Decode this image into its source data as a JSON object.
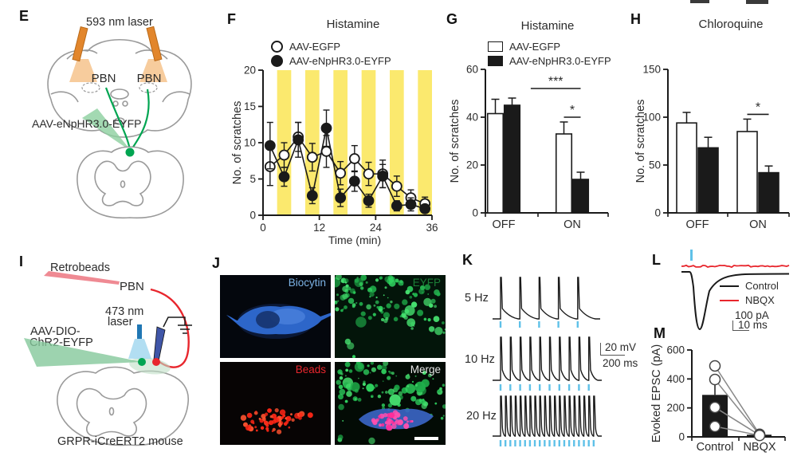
{
  "figure": {
    "panel_labels": {
      "E": "E",
      "F": "F",
      "G": "G",
      "H": "H",
      "I": "I",
      "J": "J",
      "K": "K",
      "L": "L",
      "M": "M"
    }
  },
  "colors": {
    "yellow_band": "#fbe96e",
    "green": "#00a551",
    "red": "#e8262d",
    "orange": "#e2862c",
    "sky_blue": "#5fc1e8",
    "laser_blue": "#2077b4",
    "electrode_blue": "#4056a8",
    "biocytin_label": "#7cb2e4",
    "eyfp_label": "#1b7d36",
    "beads_label": "#e8262d",
    "merge_label": "#e6e6e6"
  },
  "panelE": {
    "laser_label": "593 nm laser",
    "pbn_left": "PBN",
    "pbn_right": "PBN",
    "virus_label": "AAV-eNpHR3.0-EYFP"
  },
  "panelI": {
    "retrobeads": "Retrobeads",
    "pbn": "PBN",
    "laser_line1": "473 nm",
    "laser_line2": "laser",
    "virus_line1": "AAV-DIO-",
    "virus_line2": "ChR2-EYFP",
    "mouse": "GRPR-iCreERT2 mouse"
  },
  "panelJ": {
    "labels": [
      "Biocytin",
      "EYFP",
      "Beads",
      "Merge"
    ]
  },
  "panelK": {
    "rows": [
      {
        "label": "5 Hz",
        "n": 5
      },
      {
        "label": "10 Hz",
        "n": 10
      },
      {
        "label": "20 Hz",
        "n": 20
      }
    ],
    "scale_v": "20 mV",
    "scale_h": "200 ms"
  },
  "panelL": {
    "legend": [
      {
        "label": "Control",
        "color": "#1a1a1a"
      },
      {
        "label": "NBQX",
        "color": "#e8262d"
      }
    ],
    "scale_v": "100 pA",
    "scale_h": "10 ms"
  },
  "chart_data": [
    {
      "id": "F",
      "type": "line",
      "title": "Histamine",
      "xlabel": "Time (min)",
      "ylabel": "No. of scratches",
      "xlim": [
        0,
        36
      ],
      "ylim": [
        0,
        20
      ],
      "xticks": [
        0,
        12,
        24,
        36
      ],
      "yticks": [
        0,
        5,
        10,
        15,
        20
      ],
      "band_color": "#fbe96e",
      "laser_on_bands": [
        [
          3,
          6
        ],
        [
          9,
          12
        ],
        [
          15,
          18
        ],
        [
          21,
          24
        ],
        [
          27,
          30
        ],
        [
          33,
          36
        ]
      ],
      "x": [
        1.5,
        4.5,
        7.5,
        10.5,
        13.5,
        16.5,
        19.5,
        22.5,
        25.5,
        28.5,
        31.5,
        34.5
      ],
      "series": [
        {
          "name": "AAV-EGFP",
          "marker": "open",
          "values": [
            6.7,
            8.3,
            10.8,
            8.0,
            8.8,
            5.8,
            7.8,
            5.7,
            5.7,
            4.0,
            2.4,
            1.6
          ],
          "errors": [
            2.6,
            1.7,
            2.0,
            1.9,
            2.2,
            1.6,
            1.8,
            1.6,
            1.9,
            1.4,
            1.1,
            0.9
          ]
        },
        {
          "name": "AAV-eNpHR3.0-EYFP",
          "marker": "filled",
          "values": [
            9.6,
            5.3,
            10.4,
            2.7,
            12.0,
            2.4,
            4.7,
            2.0,
            5.4,
            1.3,
            1.5,
            0.9
          ],
          "errors": [
            3.2,
            1.3,
            2.4,
            1.1,
            2.5,
            1.2,
            1.4,
            0.9,
            1.6,
            0.7,
            0.9,
            0.5
          ]
        }
      ]
    },
    {
      "id": "G",
      "type": "bar",
      "title": "Histamine",
      "ylabel": "No. of scratches",
      "ylim": [
        0,
        60
      ],
      "yticks": [
        0,
        20,
        40,
        60
      ],
      "categories": [
        "OFF",
        "ON"
      ],
      "series": [
        {
          "name": "AAV-EGFP",
          "fill": "white",
          "values": [
            41.5,
            33
          ],
          "errors": [
            6,
            5
          ]
        },
        {
          "name": "AAV-eNpHR3.0-EYFP",
          "fill": "black",
          "values": [
            45,
            14
          ],
          "errors": [
            3,
            3
          ]
        }
      ],
      "significance": [
        {
          "label": "***",
          "x1": {
            "group": 0,
            "series": 1
          },
          "x2": {
            "group": 1,
            "series": 1
          },
          "y": 52
        },
        {
          "label": "*",
          "x1": {
            "group": 1,
            "series": 0
          },
          "x2": {
            "group": 1,
            "series": 1
          },
          "y": 40
        }
      ]
    },
    {
      "id": "H",
      "type": "bar",
      "title": "Chloroquine",
      "ylabel": "No. of scratches",
      "ylim": [
        0,
        150
      ],
      "yticks": [
        0,
        50,
        100,
        150
      ],
      "categories": [
        "OFF",
        "ON"
      ],
      "series": [
        {
          "name": "AAV-EGFP",
          "fill": "white",
          "values": [
            94,
            85
          ],
          "errors": [
            11,
            13
          ]
        },
        {
          "name": "AAV-eNpHR3.0-EYFP",
          "fill": "black",
          "values": [
            68,
            42
          ],
          "errors": [
            11,
            7
          ]
        }
      ],
      "significance": [
        {
          "label": "*",
          "x1": {
            "group": 1,
            "series": 0
          },
          "x2": {
            "group": 1,
            "series": 1
          },
          "y": 103
        }
      ]
    },
    {
      "id": "M",
      "type": "bar-scatter",
      "ylabel": "Evoked EPSC (pA)",
      "ylim": [
        0,
        600
      ],
      "yticks": [
        0,
        200,
        400,
        600
      ],
      "categories": [
        "Control",
        "NBQX"
      ],
      "bar_values": [
        290,
        15
      ],
      "bar_errors": [
        100,
        0
      ],
      "paired_points": [
        [
          490,
          18
        ],
        [
          396,
          14
        ],
        [
          204,
          12
        ],
        [
          72,
          10
        ]
      ]
    }
  ]
}
